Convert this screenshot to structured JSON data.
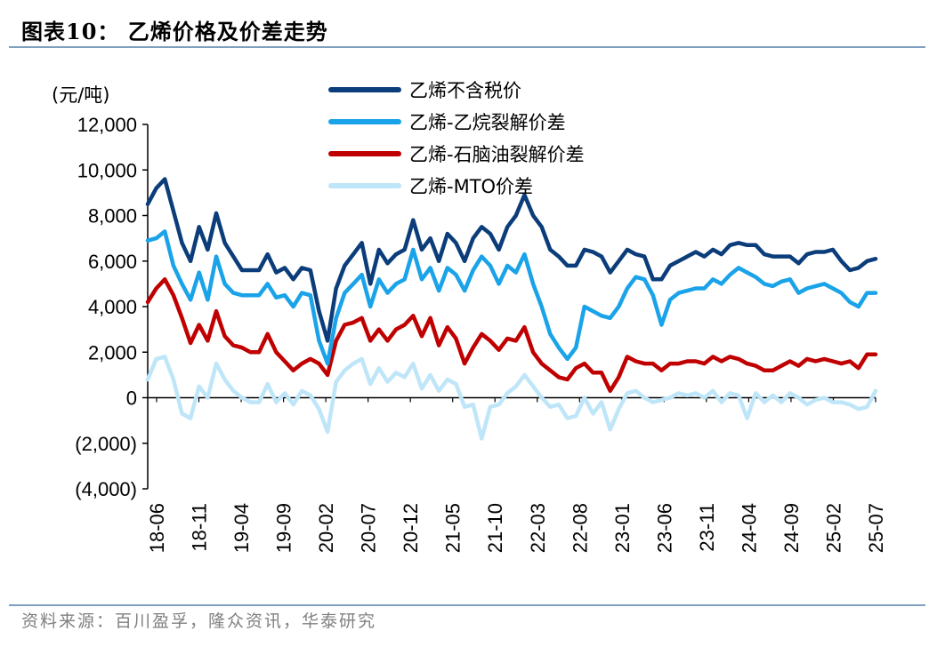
{
  "header": {
    "title": "图表10：  乙烯价格及价差走势"
  },
  "footer": {
    "source": "资料来源：百川盈孚，隆众资讯，华泰研究"
  },
  "chart_data": {
    "type": "line",
    "yunit": "(元/吨)",
    "ylim": [
      -4000,
      12000
    ],
    "yticks": [
      {
        "v": 12000,
        "label": "12,000"
      },
      {
        "v": 10000,
        "label": "10,000"
      },
      {
        "v": 8000,
        "label": "8,000"
      },
      {
        "v": 6000,
        "label": "6,000"
      },
      {
        "v": 4000,
        "label": "4,000"
      },
      {
        "v": 2000,
        "label": "2,000"
      },
      {
        "v": 0,
        "label": "0"
      },
      {
        "v": -2000,
        "label": "(2,000)"
      },
      {
        "v": -4000,
        "label": "(4,000)"
      }
    ],
    "xtick_labels": [
      "18-06",
      "18-11",
      "19-04",
      "19-09",
      "20-02",
      "20-07",
      "20-12",
      "21-05",
      "21-10",
      "22-03",
      "22-08",
      "23-01",
      "23-06",
      "23-11",
      "24-04",
      "24-09",
      "25-02",
      "25-07"
    ],
    "grid": false,
    "legend_position": "top-center",
    "x": [
      "18-06",
      "18-08",
      "18-09",
      "18-10",
      "18-11",
      "18-12",
      "19-01",
      "19-02",
      "19-03",
      "19-04",
      "19-05",
      "19-06",
      "19-07",
      "19-08",
      "19-09",
      "19-10",
      "19-11",
      "19-12",
      "20-01",
      "20-02",
      "20-03",
      "20-04",
      "20-05",
      "20-06",
      "20-07",
      "20-08",
      "20-09",
      "20-10",
      "20-11",
      "20-12",
      "21-01",
      "21-02",
      "21-03",
      "21-04",
      "21-05",
      "21-06",
      "21-07",
      "21-08",
      "21-09",
      "21-10",
      "21-11",
      "21-12",
      "22-01",
      "22-02",
      "22-03",
      "22-04",
      "22-05",
      "22-06",
      "22-07",
      "22-08",
      "22-09",
      "22-10",
      "22-11",
      "22-12",
      "23-01",
      "23-02",
      "23-03",
      "23-04",
      "23-05",
      "23-06",
      "23-07",
      "23-08",
      "23-09",
      "23-10",
      "23-11",
      "23-12",
      "24-01",
      "24-02",
      "24-03",
      "24-04",
      "24-05",
      "24-06",
      "24-07",
      "24-08",
      "24-09",
      "24-10",
      "24-11",
      "24-12",
      "25-01",
      "25-02",
      "25-03",
      "25-04",
      "25-05",
      "25-06",
      "25-07",
      "25-08"
    ],
    "series": [
      {
        "name": "乙烯不含税价",
        "color": "#0b3d7a",
        "values": [
          8500,
          9200,
          9600,
          8200,
          6800,
          6000,
          7500,
          6500,
          8100,
          6800,
          6200,
          5600,
          5600,
          5600,
          6300,
          5500,
          5700,
          5200,
          5700,
          5600,
          3800,
          2500,
          4800,
          5800,
          6300,
          6800,
          5000,
          6500,
          5900,
          6300,
          6500,
          7800,
          6500,
          7000,
          6000,
          7200,
          6800,
          6000,
          7000,
          7500,
          7200,
          6500,
          7500,
          8000,
          8900,
          8000,
          7500,
          6500,
          6200,
          5800,
          5800,
          6500,
          6400,
          6200,
          5500,
          6000,
          6500,
          6300,
          6200,
          5200,
          5200,
          5800,
          6000,
          6200,
          6400,
          6200,
          6500,
          6300,
          6700,
          6800,
          6700,
          6700,
          6300,
          6200,
          6200,
          6200,
          5900,
          6300,
          6400,
          6400,
          6500,
          6000,
          5600,
          5700,
          6000,
          6100
        ]
      },
      {
        "name": "乙烯-乙烷裂解价差",
        "color": "#1aa3e8",
        "values": [
          6900,
          7000,
          7300,
          5800,
          5000,
          4300,
          5500,
          4300,
          6200,
          5000,
          4600,
          4500,
          4500,
          4500,
          5000,
          4400,
          4500,
          4000,
          4600,
          4500,
          2500,
          1500,
          3500,
          4600,
          5000,
          5400,
          4000,
          5200,
          4600,
          5000,
          5200,
          6500,
          5200,
          5700,
          4700,
          5700,
          5400,
          4700,
          5600,
          6200,
          5800,
          5000,
          5800,
          5500,
          6300,
          5000,
          4000,
          2800,
          2200,
          1700,
          2200,
          4000,
          3800,
          3600,
          3500,
          4000,
          4800,
          5300,
          5200,
          4500,
          3200,
          4300,
          4600,
          4700,
          4800,
          4800,
          5200,
          5000,
          5400,
          5700,
          5500,
          5300,
          5000,
          4900,
          5100,
          5200,
          4600,
          4800,
          4900,
          5000,
          4800,
          4600,
          4200,
          4000,
          4600,
          4600
        ]
      },
      {
        "name": "乙烯-石脑油裂解价差",
        "color": "#c00000",
        "values": [
          4200,
          4800,
          5200,
          4500,
          3500,
          2400,
          3200,
          2500,
          3800,
          2700,
          2300,
          2200,
          2000,
          2000,
          2800,
          2000,
          1600,
          1200,
          1500,
          1700,
          1500,
          1000,
          2500,
          3200,
          3300,
          3500,
          2500,
          3000,
          2500,
          3000,
          3200,
          3600,
          2700,
          3500,
          2300,
          3100,
          2600,
          1500,
          2200,
          2800,
          2500,
          2100,
          2600,
          2500,
          3100,
          2000,
          1500,
          1200,
          900,
          800,
          1300,
          1500,
          1100,
          1100,
          300,
          900,
          1800,
          1600,
          1500,
          1500,
          1200,
          1500,
          1500,
          1600,
          1600,
          1500,
          1800,
          1600,
          1800,
          1700,
          1500,
          1400,
          1200,
          1200,
          1400,
          1600,
          1400,
          1700,
          1600,
          1700,
          1600,
          1500,
          1600,
          1300,
          1900,
          1900
        ]
      },
      {
        "name": "乙烯-MTO价差",
        "color": "#bfe6f8",
        "values": [
          800,
          1700,
          1800,
          800,
          -700,
          -900,
          500,
          0,
          1500,
          800,
          300,
          0,
          -200,
          -200,
          600,
          -200,
          200,
          -300,
          300,
          100,
          -500,
          -1500,
          700,
          1200,
          1500,
          1700,
          600,
          1300,
          700,
          1100,
          900,
          1500,
          400,
          1000,
          300,
          800,
          600,
          -400,
          -300,
          -1800,
          -400,
          -300,
          200,
          500,
          1000,
          500,
          0,
          -400,
          -300,
          -900,
          -800,
          0,
          -700,
          -200,
          -1400,
          -500,
          200,
          300,
          0,
          -200,
          -100,
          0,
          200,
          100,
          200,
          0,
          300,
          -200,
          200,
          100,
          -900,
          200,
          -200,
          100,
          -200,
          200,
          0,
          -300,
          -100,
          0,
          -200,
          -200,
          -300,
          -500,
          -400,
          300
        ]
      }
    ]
  }
}
